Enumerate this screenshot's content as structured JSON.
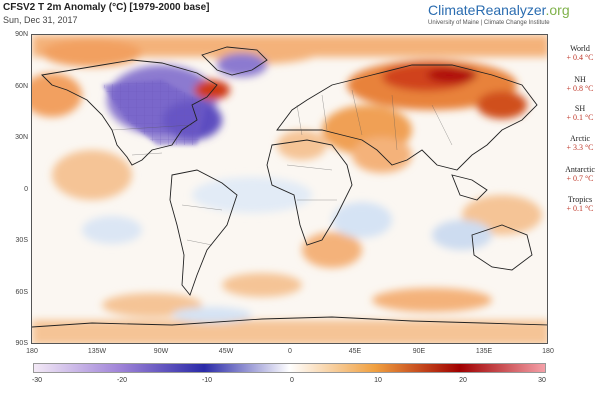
{
  "header": {
    "title": "CFSV2 T 2m Anomaly (°C) [1979-2000 base]",
    "date": "Sun, Dec 31, 2017"
  },
  "brand": {
    "name_main": "ClimateReanalyzer",
    "name_suffix": ".org",
    "subtitle": "University of Maine | Climate Change Institute"
  },
  "map": {
    "lat_labels": [
      "90N",
      "60N",
      "30N",
      "0",
      "30S",
      "60S",
      "90S"
    ],
    "lon_labels": [
      "180",
      "135W",
      "90W",
      "45W",
      "0",
      "45E",
      "90E",
      "135E",
      "180"
    ]
  },
  "stats": [
    {
      "name": "World",
      "value": "+ 0.4 °C"
    },
    {
      "name": "NH",
      "value": "+ 0.8 °C"
    },
    {
      "name": "SH",
      "value": "+ 0.1 °C"
    },
    {
      "name": "Arctic",
      "value": "+ 3.3 °C"
    },
    {
      "name": "Antarctic",
      "value": "+ 0.7 °C"
    },
    {
      "name": "Tropics",
      "value": "+ 0.1 °C"
    }
  ],
  "colorbar": {
    "ticks": [
      "-30",
      "-20",
      "-10",
      "0",
      "10",
      "20",
      "30"
    ],
    "colors": [
      "#f3e9f6",
      "#a084d8",
      "#2a2aa8",
      "#ffffff",
      "#f0a040",
      "#a00000",
      "#f4a0a8"
    ]
  }
}
